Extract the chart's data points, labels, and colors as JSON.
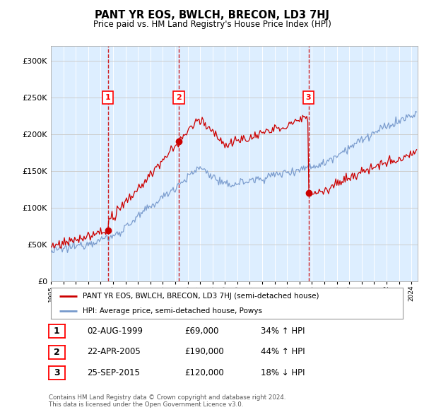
{
  "title": "PANT YR EOS, BWLCH, BRECON, LD3 7HJ",
  "subtitle": "Price paid vs. HM Land Registry's House Price Index (HPI)",
  "legend_label_red": "PANT YR EOS, BWLCH, BRECON, LD3 7HJ (semi-detached house)",
  "legend_label_blue": "HPI: Average price, semi-detached house, Powys",
  "footer": "Contains HM Land Registry data © Crown copyright and database right 2024.\nThis data is licensed under the Open Government Licence v3.0.",
  "sale_dates": [
    1999.58,
    2005.3,
    2015.72
  ],
  "sale_prices": [
    69000,
    190000,
    120000
  ],
  "sale_nums": [
    1,
    2,
    3
  ],
  "sale_rows": [
    [
      "1",
      "02-AUG-1999",
      "£69,000",
      "34% ↑ HPI"
    ],
    [
      "2",
      "22-APR-2005",
      "£190,000",
      "44% ↑ HPI"
    ],
    [
      "3",
      "25-SEP-2015",
      "£120,000",
      "18% ↓ HPI"
    ]
  ],
  "plot_bg_color": "#ddeeff",
  "red_color": "#cc0000",
  "blue_color": "#7799cc",
  "dashed_color": "#cc0000",
  "ylim": [
    0,
    320000
  ],
  "yticks": [
    0,
    50000,
    100000,
    150000,
    200000,
    250000,
    300000
  ],
  "year_start": 1995,
  "year_end": 2024
}
